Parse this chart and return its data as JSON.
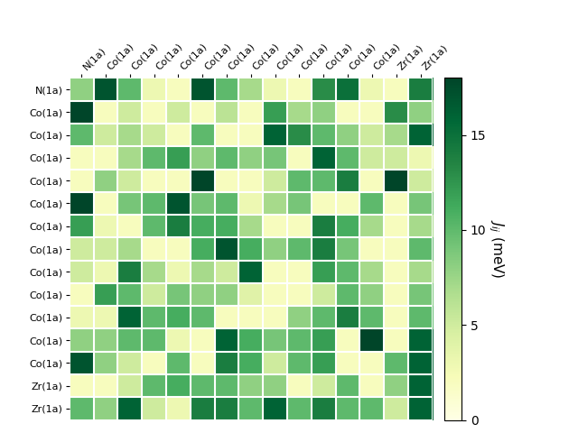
{
  "labels": [
    "N(1a)",
    "Co(1a)",
    "Co(1a)",
    "Co(1a)",
    "Co(1a)",
    "Co(1a)",
    "Co(1a)",
    "Co(1a)",
    "Co(1a)",
    "Co(1a)",
    "Co(1a)",
    "Co(1a)",
    "Co(1a)",
    "Zr(1a)",
    "Zr(1a)"
  ],
  "col_labels": [
    "N(1a)",
    "Co(1a)",
    "Co(1a)",
    "Co(1a)",
    "Co(1a)",
    "Co(1a)",
    "Co(1a)",
    "Co(1a)",
    "Co(1a)",
    "Co(1a)",
    "Co(1a)",
    "Co(1a)",
    "Co(1a)",
    "Zr(1a)",
    "Zr(1a)"
  ],
  "vmin": 0,
  "vmax": 18,
  "cbar_ticks": [
    0,
    5,
    10,
    15
  ],
  "cbar_label": "$J_{ij}$ (meV)",
  "colormap": "YlGn",
  "data": [
    [
      8,
      17,
      10,
      3,
      2,
      17,
      10,
      7,
      3,
      2,
      13,
      15,
      3,
      2,
      14
    ],
    [
      18,
      2,
      5,
      2,
      5,
      2,
      6,
      2,
      12,
      7,
      8,
      2,
      2,
      13,
      8
    ],
    [
      10,
      5,
      7,
      5,
      2,
      10,
      2,
      2,
      16,
      13,
      10,
      8,
      5,
      7,
      16
    ],
    [
      2,
      2,
      7,
      10,
      12,
      8,
      10,
      8,
      9,
      2,
      16,
      10,
      5,
      5,
      3
    ],
    [
      2,
      8,
      5,
      2,
      2,
      18,
      2,
      2,
      5,
      10,
      10,
      14,
      2,
      18,
      5
    ],
    [
      18,
      2,
      9,
      10,
      17,
      9,
      10,
      3,
      7,
      9,
      2,
      2,
      10,
      2,
      9
    ],
    [
      12,
      3,
      2,
      10,
      14,
      11,
      11,
      7,
      2,
      2,
      14,
      11,
      7,
      2,
      7
    ],
    [
      5,
      5,
      7,
      2,
      2,
      11,
      17,
      11,
      8,
      10,
      14,
      9,
      2,
      2,
      10
    ],
    [
      5,
      3,
      14,
      7,
      3,
      7,
      5,
      16,
      2,
      2,
      12,
      10,
      7,
      2,
      7
    ],
    [
      2,
      12,
      10,
      5,
      9,
      8,
      8,
      4,
      2,
      2,
      5,
      10,
      8,
      2,
      9
    ],
    [
      3,
      3,
      16,
      10,
      11,
      10,
      2,
      2,
      2,
      8,
      10,
      14,
      10,
      2,
      10
    ],
    [
      8,
      8,
      10,
      10,
      3,
      2,
      16,
      11,
      9,
      10,
      12,
      2,
      18,
      2,
      16
    ],
    [
      17,
      8,
      5,
      2,
      10,
      2,
      14,
      11,
      5,
      10,
      12,
      2,
      2,
      10,
      16
    ],
    [
      2,
      2,
      5,
      10,
      11,
      10,
      10,
      8,
      8,
      2,
      5,
      10,
      2,
      8,
      16
    ],
    [
      10,
      8,
      16,
      5,
      3,
      14,
      14,
      10,
      16,
      10,
      14,
      10,
      10,
      5,
      16
    ]
  ]
}
